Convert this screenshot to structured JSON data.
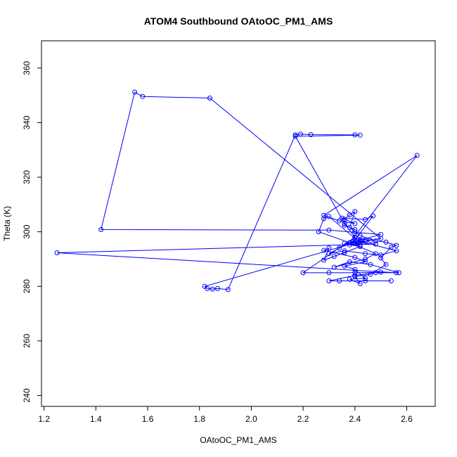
{
  "chart_data": {
    "type": "line",
    "title": "ATOM4 Southbound OAtoOC_PM1_AMS",
    "xlabel": "OAtoOC_PM1_AMS",
    "ylabel": "Theta (K)",
    "xlim": [
      1.19,
      2.71
    ],
    "ylim": [
      236,
      370
    ],
    "xticks": [
      "1.2",
      "1.4",
      "1.6",
      "1.8",
      "2.0",
      "2.2",
      "2.4",
      "2.6"
    ],
    "yticks": [
      "240",
      "260",
      "280",
      "300",
      "320",
      "340",
      "360"
    ],
    "grid": false,
    "series": [
      {
        "color": "#0000ff",
        "marker": "open-circle",
        "points": [
          [
            2.54,
            282.0
          ],
          [
            2.44,
            282.0
          ],
          [
            2.34,
            282.0
          ],
          [
            2.3,
            282.0
          ],
          [
            2.4,
            284.0
          ],
          [
            2.48,
            285.0
          ],
          [
            2.56,
            285.0
          ],
          [
            1.25,
            292.3
          ],
          [
            2.48,
            295.5
          ],
          [
            2.4,
            296.0
          ],
          [
            2.42,
            295.0
          ],
          [
            2.36,
            295.8
          ],
          [
            2.44,
            296.5
          ],
          [
            2.5,
            297.5
          ],
          [
            1.84,
            349.0
          ],
          [
            1.58,
            349.6
          ],
          [
            1.55,
            351.2
          ],
          [
            1.42,
            300.8
          ],
          [
            2.3,
            300.6
          ],
          [
            2.5,
            299.0
          ],
          [
            2.42,
            297.0
          ],
          [
            2.38,
            296.0
          ],
          [
            2.64,
            328.0
          ],
          [
            2.28,
            306.0
          ],
          [
            2.34,
            304.0
          ],
          [
            2.4,
            303.0
          ],
          [
            2.35,
            305.0
          ],
          [
            2.44,
            304.5
          ],
          [
            2.47,
            305.8
          ],
          [
            2.4,
            297.0
          ],
          [
            2.34,
            294.0
          ],
          [
            2.3,
            292.0
          ],
          [
            2.36,
            293.0
          ],
          [
            2.44,
            292.0
          ],
          [
            2.5,
            291.5
          ],
          [
            2.56,
            293.0
          ],
          [
            2.42,
            296.5
          ],
          [
            1.82,
            280.0
          ],
          [
            1.83,
            279.2
          ],
          [
            1.85,
            279.0
          ],
          [
            1.87,
            279.2
          ],
          [
            1.91,
            278.8
          ],
          [
            2.17,
            335.5
          ],
          [
            2.19,
            335.8
          ],
          [
            2.23,
            335.6
          ],
          [
            2.4,
            335.5
          ],
          [
            2.42,
            335.4
          ],
          [
            2.17,
            335.0
          ],
          [
            2.36,
            303.0
          ],
          [
            2.4,
            298.0
          ],
          [
            2.2,
            285.0
          ],
          [
            2.3,
            285.0
          ],
          [
            2.4,
            285.0
          ],
          [
            2.5,
            285.2
          ],
          [
            2.57,
            285.0
          ],
          [
            2.46,
            288.0
          ],
          [
            2.38,
            289.0
          ],
          [
            2.32,
            287.0
          ],
          [
            2.44,
            290.0
          ],
          [
            2.48,
            292.0
          ],
          [
            2.38,
            296.0
          ],
          [
            2.26,
            300.0
          ],
          [
            2.28,
            304.8
          ],
          [
            2.3,
            305.6
          ],
          [
            2.42,
            296.0
          ],
          [
            2.44,
            297.2
          ],
          [
            2.4,
            297.8
          ],
          [
            2.46,
            296.8
          ],
          [
            2.38,
            295.2
          ],
          [
            2.42,
            294.6
          ],
          [
            2.36,
            292.4
          ],
          [
            2.32,
            291.0
          ],
          [
            2.28,
            289.6
          ],
          [
            2.3,
            294.0
          ],
          [
            2.28,
            293.2
          ],
          [
            2.4,
            290.6
          ],
          [
            2.44,
            289.0
          ],
          [
            2.36,
            287.4
          ],
          [
            2.4,
            286.2
          ],
          [
            2.44,
            283.0
          ],
          [
            2.38,
            282.6
          ],
          [
            2.42,
            281.0
          ],
          [
            2.4,
            283.6
          ],
          [
            2.46,
            284.4
          ],
          [
            2.52,
            288.0
          ],
          [
            2.5,
            290.4
          ],
          [
            2.54,
            294.4
          ],
          [
            2.56,
            295.0
          ],
          [
            2.52,
            296.2
          ],
          [
            2.48,
            296.6
          ],
          [
            2.42,
            298.6
          ],
          [
            2.4,
            300.0
          ],
          [
            2.38,
            301.6
          ],
          [
            2.4,
            307.4
          ],
          [
            2.38,
            306.2
          ],
          [
            2.36,
            304.6
          ],
          [
            2.36,
            302.4
          ],
          [
            2.4,
            300.8
          ]
        ]
      }
    ]
  }
}
